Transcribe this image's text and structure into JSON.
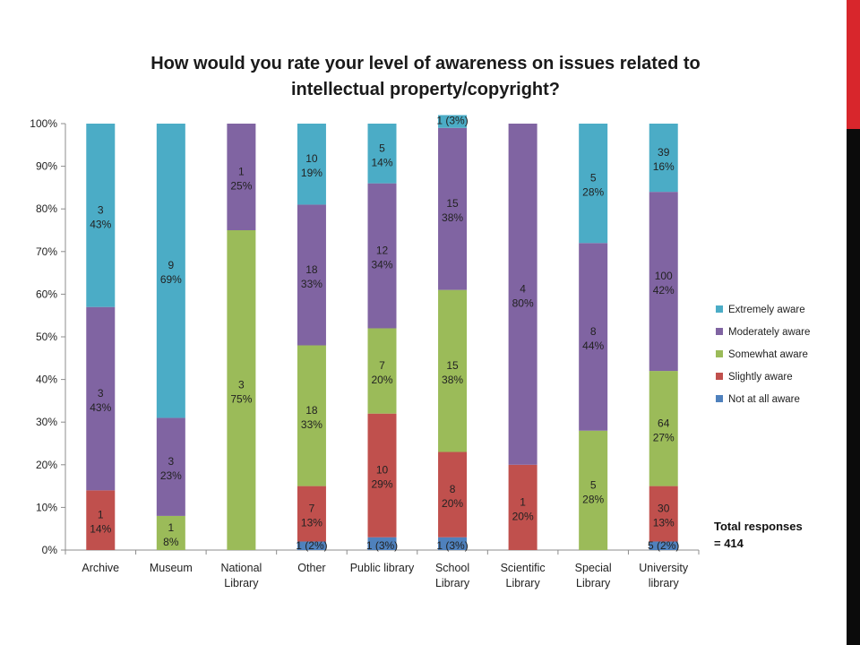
{
  "colors": {
    "extremely": "#4bacc6",
    "moderately": "#8064a2",
    "somewhat": "#9bbb59",
    "slightly": "#c0504d",
    "not_at_all": "#4f81bd",
    "accent_red": "#d8262c",
    "accent_black": "#0b0b0b"
  },
  "note": {
    "line1": "Total responses",
    "line2": "= 414"
  },
  "chart_data": {
    "type": "bar",
    "stacked": true,
    "percent_stacked": true,
    "title_line1": "How would you rate your level of awareness on issues related to",
    "title_line2": "intellectual property/copyright?",
    "xlabel": "",
    "ylabel": "",
    "ylim": [
      0,
      100
    ],
    "y_ticks": [
      "0%",
      "10%",
      "20%",
      "30%",
      "40%",
      "50%",
      "60%",
      "70%",
      "80%",
      "90%",
      "100%"
    ],
    "grid": false,
    "legend_position": "right",
    "categories": [
      {
        "line1": "Archive",
        "line2": ""
      },
      {
        "line1": "Museum",
        "line2": ""
      },
      {
        "line1": "National",
        "line2": "Library"
      },
      {
        "line1": "Other",
        "line2": ""
      },
      {
        "line1": "Public library",
        "line2": ""
      },
      {
        "line1": "School",
        "line2": "Library"
      },
      {
        "line1": "Scientific",
        "line2": "Library"
      },
      {
        "line1": "Special",
        "line2": "Library"
      },
      {
        "line1": "University",
        "line2": "library"
      }
    ],
    "series": [
      {
        "name": "Not at all aware",
        "color_key": "not_at_all",
        "counts": [
          0,
          0,
          0,
          1,
          1,
          1,
          0,
          0,
          5
        ],
        "values": [
          0,
          0,
          0,
          2,
          3,
          3,
          0,
          0,
          2
        ],
        "labels": [
          "",
          "",
          "",
          "1 (2%)",
          "1 (3%)",
          "1 (3%)",
          "",
          "",
          "5 (2%)"
        ]
      },
      {
        "name": "Slightly aware",
        "color_key": "slightly",
        "counts": [
          1,
          0,
          0,
          7,
          10,
          8,
          1,
          0,
          30
        ],
        "values": [
          14,
          0,
          0,
          13,
          29,
          20,
          20,
          0,
          13
        ],
        "labels": [
          "1\n14%",
          "",
          "",
          "7\n13%",
          "10\n29%",
          "8\n20%",
          "1\n20%",
          "",
          "30\n13%"
        ]
      },
      {
        "name": "Somewhat aware",
        "color_key": "somewhat",
        "counts": [
          0,
          1,
          3,
          18,
          7,
          15,
          0,
          5,
          64
        ],
        "values": [
          0,
          8,
          75,
          33,
          20,
          38,
          0,
          28,
          27
        ],
        "labels": [
          "",
          "1\n8%",
          "3\n75%",
          "18\n33%",
          "7\n20%",
          "15\n38%",
          "",
          "5\n28%",
          "64\n27%"
        ]
      },
      {
        "name": "Moderately aware",
        "color_key": "moderately",
        "counts": [
          3,
          3,
          1,
          18,
          12,
          15,
          4,
          8,
          100
        ],
        "values": [
          43,
          23,
          25,
          33,
          34,
          38,
          80,
          44,
          42
        ],
        "labels": [
          "3\n43%",
          "3\n23%",
          "1\n25%",
          "18\n33%",
          "12\n34%",
          "15\n38%",
          "4\n80%",
          "8\n44%",
          "100\n42%"
        ]
      },
      {
        "name": "Extremely aware",
        "color_key": "extremely",
        "counts": [
          3,
          9,
          0,
          10,
          5,
          1,
          0,
          5,
          39
        ],
        "values": [
          43,
          69,
          0,
          19,
          14,
          3,
          0,
          28,
          16
        ],
        "labels": [
          "3\n43%",
          "9\n69%",
          "",
          "10\n19%",
          "5\n14%",
          "1 (3%)",
          "",
          "5\n28%",
          "39\n16%"
        ]
      }
    ],
    "legend_order": [
      "Extremely aware",
      "Moderately aware",
      "Somewhat aware",
      "Slightly aware",
      "Not at all aware"
    ]
  }
}
